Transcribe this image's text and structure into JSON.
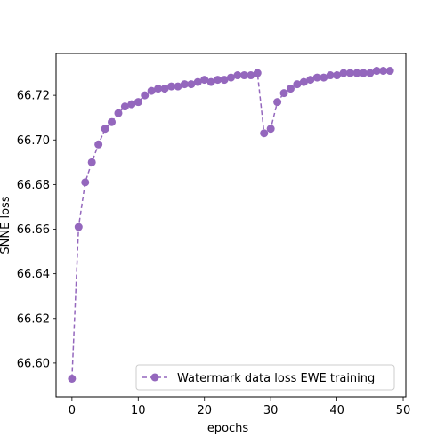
{
  "chart_data": {
    "type": "line",
    "xlabel": "epochs",
    "ylabel": "SNNE loss",
    "xlim": [
      -2.4,
      50.4
    ],
    "ylim": [
      66.5848,
      66.7388
    ],
    "xticks": [
      0,
      10,
      20,
      30,
      40,
      50
    ],
    "xtick_labels": [
      "0",
      "10",
      "20",
      "30",
      "40",
      "50"
    ],
    "yticks": [
      66.6,
      66.62,
      66.64,
      66.66,
      66.68,
      66.7,
      66.72
    ],
    "ytick_labels": [
      "66.60",
      "66.62",
      "66.64",
      "66.66",
      "66.68",
      "66.70",
      "66.72"
    ],
    "grid": false,
    "legend_position": "lower-right",
    "series": [
      {
        "name": "Watermark data loss EWE training",
        "color": "#9467bd",
        "line_style": "dashed",
        "marker": "circle",
        "x": [
          0,
          1,
          2,
          3,
          4,
          5,
          6,
          7,
          8,
          9,
          10,
          11,
          12,
          13,
          14,
          15,
          16,
          17,
          18,
          19,
          20,
          21,
          22,
          23,
          24,
          25,
          26,
          27,
          28,
          29,
          30,
          31,
          32,
          33,
          34,
          35,
          36,
          37,
          38,
          39,
          40,
          41,
          42,
          43,
          44,
          45,
          46,
          47,
          48
        ],
        "y": [
          66.593,
          66.661,
          66.681,
          66.69,
          66.698,
          66.705,
          66.708,
          66.712,
          66.715,
          66.716,
          66.717,
          66.72,
          66.722,
          66.723,
          66.723,
          66.724,
          66.724,
          66.725,
          66.725,
          66.726,
          66.727,
          66.726,
          66.727,
          66.727,
          66.728,
          66.729,
          66.729,
          66.729,
          66.73,
          66.703,
          66.705,
          66.717,
          66.721,
          66.723,
          66.725,
          66.726,
          66.727,
          66.728,
          66.728,
          66.729,
          66.729,
          66.73,
          66.73,
          66.73,
          66.73,
          66.73,
          66.731,
          66.731,
          66.731
        ]
      }
    ]
  }
}
